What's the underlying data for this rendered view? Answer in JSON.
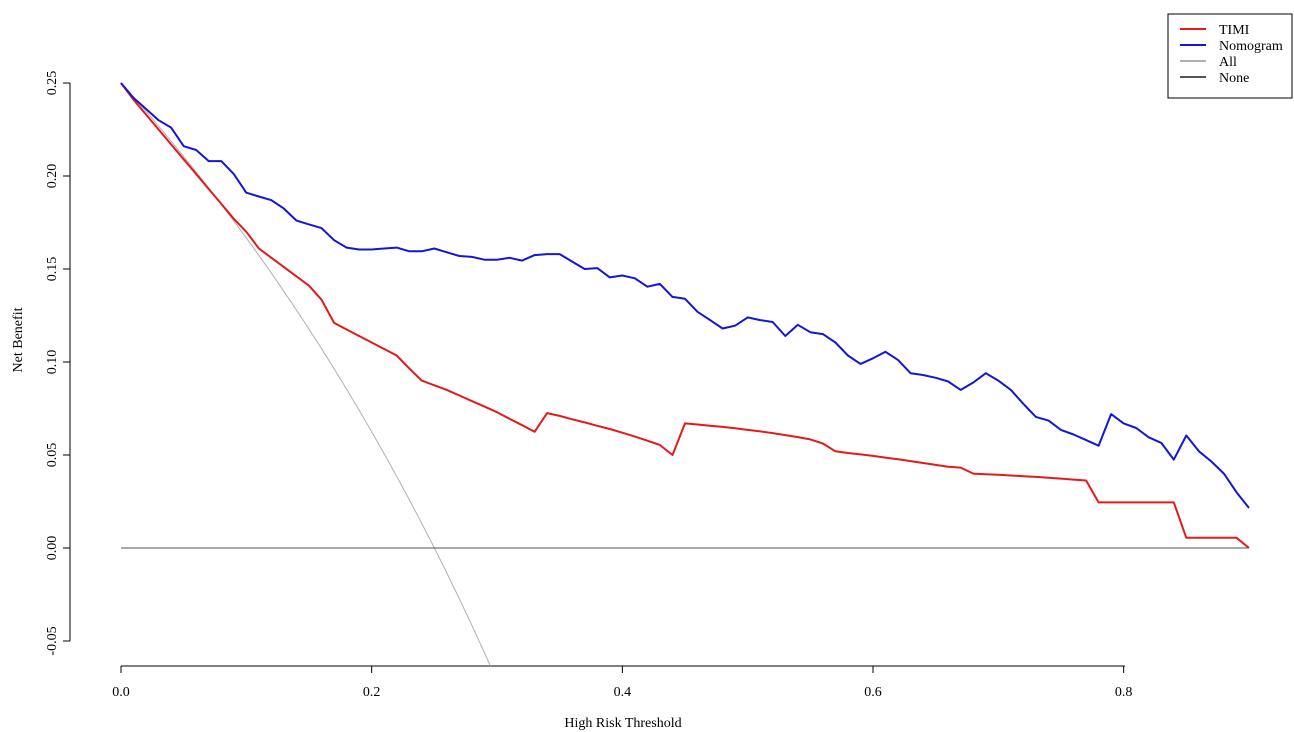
{
  "chart_data": {
    "type": "line",
    "title": "",
    "xlabel": "High Risk Threshold",
    "ylabel": "Net Benefit",
    "xlim": [
      0,
      0.9
    ],
    "ylim": [
      -0.065,
      0.25
    ],
    "x_ticks": [
      "0.0",
      "0.2",
      "0.4",
      "0.6",
      "0.8"
    ],
    "y_ticks": [
      "-0.05",
      "0.00",
      "0.05",
      "0.10",
      "0.15",
      "0.20",
      "0.25"
    ],
    "grid": false,
    "legend_position": "top-right",
    "series": [
      {
        "name": "TIMI",
        "color": "#e31a1c",
        "points": [
          [
            0.0,
            0.25
          ],
          [
            0.01,
            0.241
          ],
          [
            0.02,
            0.233
          ],
          [
            0.03,
            0.225
          ],
          [
            0.04,
            0.217
          ],
          [
            0.05,
            0.209
          ],
          [
            0.06,
            0.201
          ],
          [
            0.07,
            0.193
          ],
          [
            0.08,
            0.185
          ],
          [
            0.09,
            0.177
          ],
          [
            0.1,
            0.17
          ],
          [
            0.11,
            0.161
          ],
          [
            0.12,
            0.156
          ],
          [
            0.13,
            0.151
          ],
          [
            0.14,
            0.146
          ],
          [
            0.15,
            0.141
          ],
          [
            0.16,
            0.1335
          ],
          [
            0.17,
            0.121
          ],
          [
            0.18,
            0.1175
          ],
          [
            0.19,
            0.114
          ],
          [
            0.2,
            0.1105
          ],
          [
            0.21,
            0.107
          ],
          [
            0.22,
            0.1035
          ],
          [
            0.23,
            0.0965
          ],
          [
            0.24,
            0.09
          ],
          [
            0.25,
            0.0875
          ],
          [
            0.26,
            0.085
          ],
          [
            0.27,
            0.082
          ],
          [
            0.28,
            0.079
          ],
          [
            0.29,
            0.076
          ],
          [
            0.3,
            0.073
          ],
          [
            0.31,
            0.0695
          ],
          [
            0.32,
            0.066
          ],
          [
            0.33,
            0.0625
          ],
          [
            0.34,
            0.0725
          ],
          [
            0.35,
            0.071
          ],
          [
            0.36,
            0.0692
          ],
          [
            0.37,
            0.0675
          ],
          [
            0.38,
            0.0657
          ],
          [
            0.39,
            0.064
          ],
          [
            0.4,
            0.062
          ],
          [
            0.41,
            0.0599
          ],
          [
            0.42,
            0.0577
          ],
          [
            0.43,
            0.0554
          ],
          [
            0.44,
            0.05
          ],
          [
            0.45,
            0.067
          ],
          [
            0.46,
            0.0664
          ],
          [
            0.47,
            0.0657
          ],
          [
            0.48,
            0.0651
          ],
          [
            0.49,
            0.0644
          ],
          [
            0.5,
            0.0635
          ],
          [
            0.51,
            0.0627
          ],
          [
            0.52,
            0.0618
          ],
          [
            0.53,
            0.0607
          ],
          [
            0.54,
            0.0596
          ],
          [
            0.55,
            0.0584
          ],
          [
            0.56,
            0.0562
          ],
          [
            0.57,
            0.052
          ],
          [
            0.58,
            0.0511
          ],
          [
            0.59,
            0.0503
          ],
          [
            0.6,
            0.0495
          ],
          [
            0.61,
            0.0486
          ],
          [
            0.62,
            0.0477
          ],
          [
            0.63,
            0.0467
          ],
          [
            0.64,
            0.0457
          ],
          [
            0.65,
            0.0447
          ],
          [
            0.66,
            0.0437
          ],
          [
            0.67,
            0.0432
          ],
          [
            0.68,
            0.04
          ],
          [
            0.69,
            0.0397
          ],
          [
            0.7,
            0.0394
          ],
          [
            0.71,
            0.039
          ],
          [
            0.72,
            0.0386
          ],
          [
            0.73,
            0.0382
          ],
          [
            0.74,
            0.0378
          ],
          [
            0.75,
            0.0373
          ],
          [
            0.76,
            0.0368
          ],
          [
            0.77,
            0.0363
          ],
          [
            0.78,
            0.0245
          ],
          [
            0.79,
            0.0245
          ],
          [
            0.8,
            0.0245
          ],
          [
            0.81,
            0.0245
          ],
          [
            0.82,
            0.0245
          ],
          [
            0.83,
            0.0245
          ],
          [
            0.84,
            0.0245
          ],
          [
            0.85,
            0.0055
          ],
          [
            0.86,
            0.0055
          ],
          [
            0.87,
            0.0055
          ],
          [
            0.88,
            0.0055
          ],
          [
            0.89,
            0.0055
          ],
          [
            0.9,
            0.0
          ]
        ]
      },
      {
        "name": "Nomogram",
        "color": "#1515d6",
        "points": [
          [
            0.0,
            0.25
          ],
          [
            0.01,
            0.242
          ],
          [
            0.02,
            0.236
          ],
          [
            0.03,
            0.23
          ],
          [
            0.04,
            0.226
          ],
          [
            0.05,
            0.216
          ],
          [
            0.06,
            0.214
          ],
          [
            0.07,
            0.208
          ],
          [
            0.08,
            0.208
          ],
          [
            0.09,
            0.201
          ],
          [
            0.1,
            0.191
          ],
          [
            0.11,
            0.189
          ],
          [
            0.12,
            0.187
          ],
          [
            0.13,
            0.1825
          ],
          [
            0.14,
            0.176
          ],
          [
            0.15,
            0.174
          ],
          [
            0.16,
            0.172
          ],
          [
            0.17,
            0.1655
          ],
          [
            0.18,
            0.1615
          ],
          [
            0.19,
            0.1605
          ],
          [
            0.2,
            0.1605
          ],
          [
            0.21,
            0.161
          ],
          [
            0.22,
            0.1615
          ],
          [
            0.23,
            0.1595
          ],
          [
            0.24,
            0.1595
          ],
          [
            0.25,
            0.161
          ],
          [
            0.26,
            0.159
          ],
          [
            0.27,
            0.157
          ],
          [
            0.28,
            0.1565
          ],
          [
            0.29,
            0.155
          ],
          [
            0.3,
            0.155
          ],
          [
            0.31,
            0.156
          ],
          [
            0.32,
            0.1545
          ],
          [
            0.33,
            0.1575
          ],
          [
            0.34,
            0.158
          ],
          [
            0.35,
            0.158
          ],
          [
            0.36,
            0.154
          ],
          [
            0.37,
            0.15
          ],
          [
            0.38,
            0.1505
          ],
          [
            0.39,
            0.1455
          ],
          [
            0.4,
            0.1465
          ],
          [
            0.41,
            0.145
          ],
          [
            0.42,
            0.1405
          ],
          [
            0.43,
            0.142
          ],
          [
            0.44,
            0.135
          ],
          [
            0.45,
            0.134
          ],
          [
            0.46,
            0.127
          ],
          [
            0.47,
            0.1225
          ],
          [
            0.48,
            0.118
          ],
          [
            0.49,
            0.1195
          ],
          [
            0.5,
            0.124
          ],
          [
            0.51,
            0.1225
          ],
          [
            0.52,
            0.1215
          ],
          [
            0.53,
            0.114
          ],
          [
            0.54,
            0.12
          ],
          [
            0.55,
            0.116
          ],
          [
            0.56,
            0.115
          ],
          [
            0.57,
            0.1105
          ],
          [
            0.58,
            0.1035
          ],
          [
            0.59,
            0.099
          ],
          [
            0.6,
            0.102
          ],
          [
            0.61,
            0.1055
          ],
          [
            0.62,
            0.101
          ],
          [
            0.63,
            0.094
          ],
          [
            0.64,
            0.093
          ],
          [
            0.65,
            0.0915
          ],
          [
            0.66,
            0.0895
          ],
          [
            0.67,
            0.085
          ],
          [
            0.68,
            0.089
          ],
          [
            0.69,
            0.094
          ],
          [
            0.7,
            0.09
          ],
          [
            0.71,
            0.085
          ],
          [
            0.72,
            0.0775
          ],
          [
            0.73,
            0.0705
          ],
          [
            0.74,
            0.0685
          ],
          [
            0.75,
            0.0635
          ],
          [
            0.76,
            0.061
          ],
          [
            0.77,
            0.058
          ],
          [
            0.78,
            0.055
          ],
          [
            0.79,
            0.072
          ],
          [
            0.8,
            0.067
          ],
          [
            0.81,
            0.0645
          ],
          [
            0.82,
            0.0595
          ],
          [
            0.83,
            0.0565
          ],
          [
            0.84,
            0.0475
          ],
          [
            0.85,
            0.0605
          ],
          [
            0.86,
            0.052
          ],
          [
            0.87,
            0.0465
          ],
          [
            0.88,
            0.04
          ],
          [
            0.89,
            0.03
          ],
          [
            0.9,
            0.0215
          ]
        ]
      },
      {
        "name": "All",
        "color": "#b0b0b0",
        "formula": "0.25 - 0.75 * x / (1 - x)",
        "x_start": 0.0,
        "x_end": 0.2947
      },
      {
        "name": "None",
        "color": "#555555",
        "points": [
          [
            0.0,
            0.0
          ],
          [
            0.9,
            0.0
          ]
        ]
      }
    ]
  }
}
